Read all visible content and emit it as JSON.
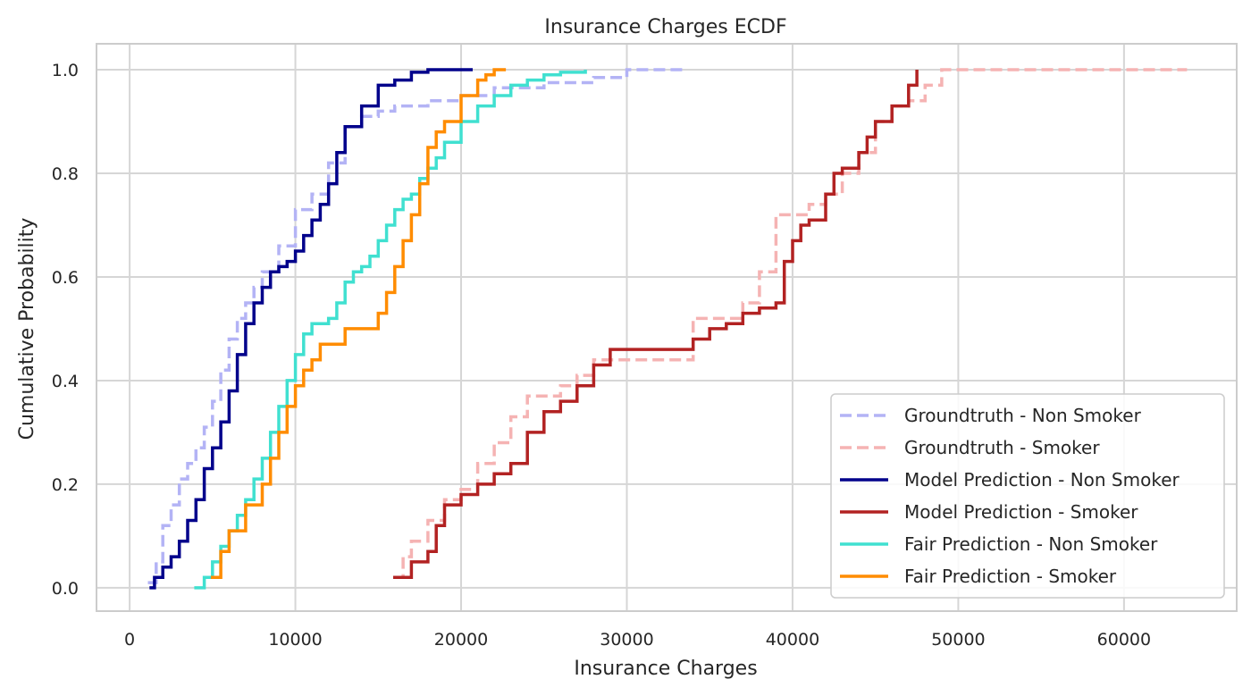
{
  "chart_data": {
    "type": "line",
    "title": "Insurance Charges ECDF",
    "xlabel": "Insurance Charges",
    "ylabel": "Cumulative Probability",
    "xlim": [
      -2000,
      66800
    ],
    "ylim": [
      -0.045,
      1.05
    ],
    "xticks": [
      0,
      10000,
      20000,
      30000,
      40000,
      50000,
      60000
    ],
    "yticks": [
      0.0,
      0.2,
      0.4,
      0.6,
      0.8,
      1.0
    ],
    "xtick_labels": [
      "0",
      "10000",
      "20000",
      "30000",
      "40000",
      "50000",
      "60000"
    ],
    "ytick_labels": [
      "0.0",
      "0.2",
      "0.4",
      "0.6",
      "0.8",
      "1.0"
    ],
    "grid": true,
    "legend_position": "lower right",
    "series": [
      {
        "name": "Groundtruth - Non Smoker",
        "color": "#b3b3f5",
        "dash": true,
        "x": [
          1100,
          1600,
          2000,
          2500,
          3000,
          3500,
          4000,
          4500,
          5000,
          5500,
          6000,
          6500,
          7000,
          7500,
          8000,
          9000,
          10000,
          11000,
          12000,
          13000,
          14000,
          15000,
          16000,
          18000,
          20000,
          22000,
          25000,
          28000,
          30000,
          33500
        ],
        "y": [
          0.01,
          0.05,
          0.12,
          0.16,
          0.21,
          0.24,
          0.27,
          0.31,
          0.36,
          0.42,
          0.48,
          0.52,
          0.55,
          0.58,
          0.61,
          0.66,
          0.73,
          0.76,
          0.82,
          0.89,
          0.91,
          0.92,
          0.93,
          0.94,
          0.95,
          0.965,
          0.975,
          0.985,
          1.0,
          1.0
        ]
      },
      {
        "name": "Groundtruth - Smoker",
        "color": "#f5b3b3",
        "dash": true,
        "x": [
          16000,
          16500,
          17000,
          18000,
          19000,
          20000,
          21000,
          22000,
          23000,
          24000,
          25000,
          26000,
          27000,
          28000,
          29000,
          32000,
          34000,
          36000,
          37000,
          38000,
          39000,
          40000,
          41000,
          42000,
          43000,
          44000,
          45000,
          46000,
          47000,
          48000,
          49000,
          63800
        ],
        "y": [
          0.02,
          0.06,
          0.09,
          0.13,
          0.17,
          0.19,
          0.24,
          0.28,
          0.33,
          0.37,
          0.37,
          0.39,
          0.41,
          0.44,
          0.44,
          0.44,
          0.52,
          0.52,
          0.55,
          0.61,
          0.72,
          0.72,
          0.74,
          0.76,
          0.8,
          0.84,
          0.9,
          0.93,
          0.94,
          0.97,
          1.0,
          1.0
        ]
      },
      {
        "name": "Model Prediction - Non Smoker",
        "color": "#00008b",
        "dash": false,
        "x": [
          1200,
          1500,
          2000,
          2500,
          3000,
          3500,
          4000,
          4500,
          5000,
          5500,
          6000,
          6500,
          7000,
          7500,
          8000,
          8500,
          9000,
          9500,
          10000,
          10500,
          11000,
          11500,
          12000,
          12500,
          13000,
          14000,
          15000,
          16000,
          17000,
          18000,
          19000,
          20000,
          20700
        ],
        "y": [
          0.0,
          0.02,
          0.04,
          0.06,
          0.09,
          0.13,
          0.17,
          0.23,
          0.27,
          0.32,
          0.38,
          0.45,
          0.51,
          0.55,
          0.58,
          0.61,
          0.62,
          0.63,
          0.65,
          0.68,
          0.71,
          0.74,
          0.78,
          0.84,
          0.89,
          0.93,
          0.97,
          0.98,
          0.995,
          1.0,
          1.0,
          1.0,
          1.0
        ]
      },
      {
        "name": "Model Prediction - Smoker",
        "color": "#b22222",
        "dash": false,
        "x": [
          15900,
          17000,
          18000,
          18500,
          19000,
          20000,
          21000,
          22000,
          23000,
          24000,
          25000,
          26000,
          27000,
          28000,
          29000,
          33000,
          34000,
          35000,
          36000,
          37000,
          38000,
          39000,
          39500,
          40000,
          40500,
          41000,
          42000,
          42500,
          43000,
          44000,
          44500,
          45000,
          46000,
          47000,
          47500
        ],
        "y": [
          0.02,
          0.05,
          0.07,
          0.12,
          0.16,
          0.18,
          0.2,
          0.22,
          0.24,
          0.3,
          0.34,
          0.36,
          0.39,
          0.43,
          0.46,
          0.46,
          0.48,
          0.5,
          0.51,
          0.53,
          0.54,
          0.55,
          0.63,
          0.67,
          0.7,
          0.71,
          0.76,
          0.8,
          0.81,
          0.84,
          0.87,
          0.9,
          0.93,
          0.97,
          1.0
        ]
      },
      {
        "name": "Fair Prediction - Non Smoker",
        "color": "#40e0d0",
        "dash": false,
        "x": [
          3900,
          4500,
          5000,
          5500,
          6000,
          6500,
          7000,
          7500,
          8000,
          8500,
          9000,
          9500,
          10000,
          10500,
          11000,
          11500,
          12000,
          12500,
          13000,
          13500,
          14000,
          14500,
          15000,
          15500,
          16000,
          16500,
          17000,
          17500,
          18000,
          18500,
          19000,
          20000,
          21000,
          22000,
          23000,
          24000,
          25000,
          26000,
          27500
        ],
        "y": [
          0.0,
          0.02,
          0.05,
          0.08,
          0.11,
          0.14,
          0.17,
          0.21,
          0.25,
          0.3,
          0.35,
          0.4,
          0.45,
          0.49,
          0.51,
          0.51,
          0.52,
          0.55,
          0.59,
          0.61,
          0.62,
          0.64,
          0.67,
          0.7,
          0.73,
          0.75,
          0.76,
          0.79,
          0.81,
          0.83,
          0.86,
          0.9,
          0.93,
          0.95,
          0.97,
          0.98,
          0.99,
          0.995,
          1.0
        ]
      },
      {
        "name": "Fair Prediction - Smoker",
        "color": "#ff8c00",
        "dash": false,
        "x": [
          4900,
          5500,
          6000,
          7000,
          8000,
          8500,
          9000,
          9500,
          10000,
          10500,
          11000,
          11500,
          12000,
          12500,
          13000,
          14000,
          15000,
          15500,
          16000,
          16500,
          17000,
          17500,
          18000,
          18500,
          19000,
          20000,
          21000,
          21500,
          22000,
          22700
        ],
        "y": [
          0.02,
          0.07,
          0.11,
          0.16,
          0.2,
          0.25,
          0.3,
          0.35,
          0.39,
          0.42,
          0.44,
          0.47,
          0.47,
          0.47,
          0.5,
          0.5,
          0.53,
          0.57,
          0.62,
          0.67,
          0.72,
          0.78,
          0.85,
          0.88,
          0.9,
          0.95,
          0.98,
          0.99,
          1.0,
          1.0
        ]
      }
    ]
  }
}
